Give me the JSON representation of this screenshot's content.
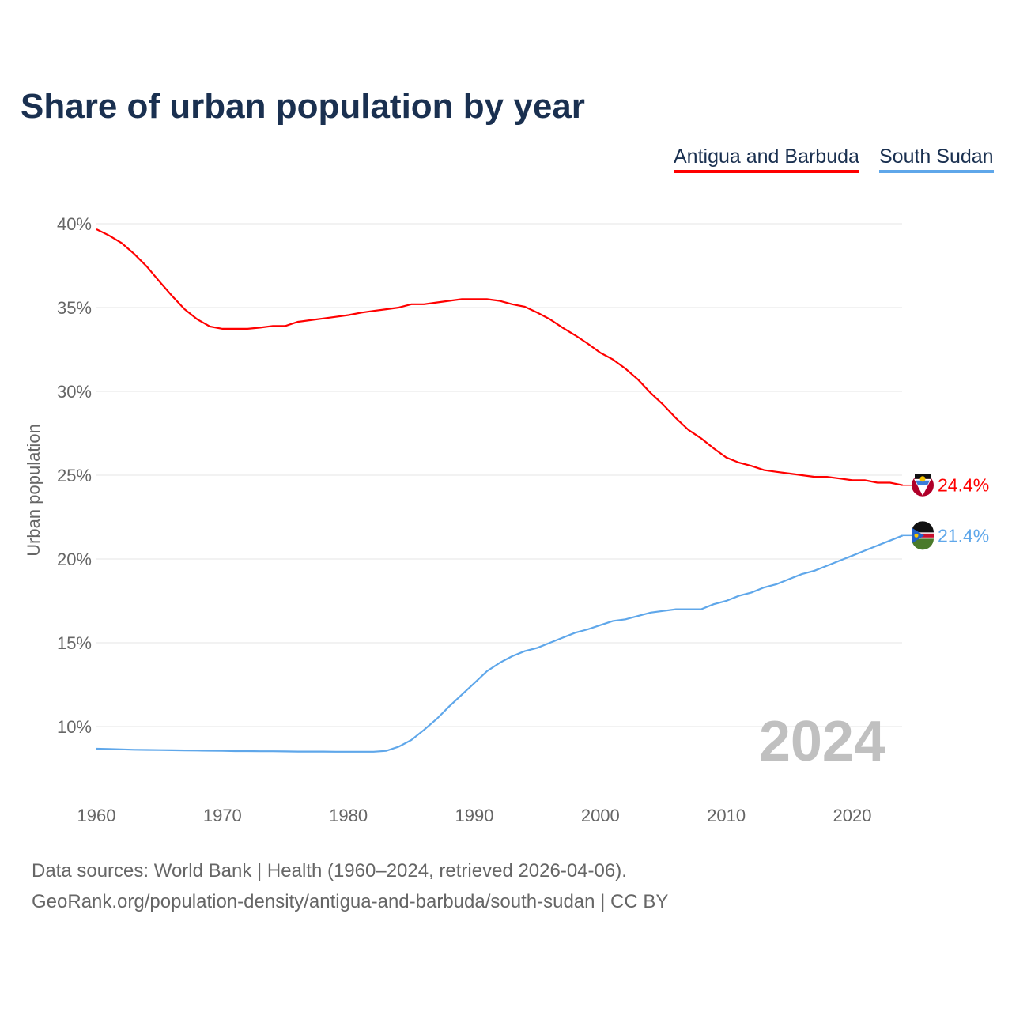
{
  "chart_data": {
    "type": "line",
    "title": "Share of urban population by year",
    "xlabel": "",
    "ylabel": "Urban population",
    "xlim": [
      1960,
      2024
    ],
    "ylim": [
      5,
      40
    ],
    "grid": true,
    "legend_position": "top-right",
    "x_ticks": [
      "1960",
      "1970",
      "1980",
      "1990",
      "2000",
      "2010",
      "2020"
    ],
    "y_ticks": [
      "10%",
      "15%",
      "20%",
      "25%",
      "30%",
      "35%",
      "40%"
    ],
    "year_watermark": "2024",
    "x": [
      1960,
      1961,
      1962,
      1963,
      1964,
      1965,
      1966,
      1967,
      1968,
      1969,
      1970,
      1971,
      1972,
      1973,
      1974,
      1975,
      1976,
      1977,
      1978,
      1979,
      1980,
      1981,
      1982,
      1983,
      1984,
      1985,
      1986,
      1987,
      1988,
      1989,
      1990,
      1991,
      1992,
      1993,
      1994,
      1995,
      1996,
      1997,
      1998,
      1999,
      2000,
      2001,
      2002,
      2003,
      2004,
      2005,
      2006,
      2007,
      2008,
      2009,
      2010,
      2011,
      2012,
      2013,
      2014,
      2015,
      2016,
      2017,
      2018,
      2019,
      2020,
      2021,
      2022,
      2023,
      2024
    ],
    "series": [
      {
        "name": "Antigua and Barbuda",
        "color": "#ff0000",
        "end_label": "24.4%",
        "values": [
          39.67,
          39.3,
          38.85,
          38.2,
          37.45,
          36.55,
          35.7,
          34.9,
          34.3,
          33.87,
          33.73,
          33.73,
          33.73,
          33.8,
          33.9,
          33.9,
          34.15,
          34.25,
          34.35,
          34.45,
          34.55,
          34.7,
          34.8,
          34.9,
          35.0,
          35.2,
          35.2,
          35.3,
          35.4,
          35.5,
          35.5,
          35.5,
          35.4,
          35.2,
          35.05,
          34.7,
          34.3,
          33.8,
          33.35,
          32.85,
          32.3,
          31.9,
          31.35,
          30.7,
          29.9,
          29.2,
          28.4,
          27.7,
          27.2,
          26.6,
          26.05,
          25.75,
          25.55,
          25.3,
          25.2,
          25.1,
          25.0,
          24.9,
          24.9,
          24.8,
          24.7,
          24.7,
          24.55,
          24.55,
          24.4
        ]
      },
      {
        "name": "South Sudan",
        "color": "#5fa7ea",
        "end_label": "21.4%",
        "values": [
          8.68,
          8.66,
          8.64,
          8.62,
          8.61,
          8.6,
          8.59,
          8.58,
          8.57,
          8.56,
          8.55,
          8.54,
          8.54,
          8.53,
          8.53,
          8.52,
          8.51,
          8.51,
          8.51,
          8.5,
          8.5,
          8.5,
          8.5,
          8.55,
          8.8,
          9.2,
          9.8,
          10.45,
          11.2,
          11.9,
          12.6,
          13.3,
          13.8,
          14.2,
          14.5,
          14.7,
          15.0,
          15.3,
          15.6,
          15.8,
          16.05,
          16.3,
          16.4,
          16.6,
          16.8,
          16.9,
          17.0,
          17.0,
          17.0,
          17.3,
          17.5,
          17.8,
          18.0,
          18.3,
          18.5,
          18.8,
          19.1,
          19.3,
          19.6,
          19.9,
          20.2,
          20.5,
          20.8,
          21.1,
          21.4
        ]
      }
    ]
  },
  "footer": {
    "line1": "Data sources: World Bank | Health (1960–2024, retrieved 2026-04-06).",
    "line2": "GeoRank.org/population-density/antigua-and-barbuda/south-sudan | CC BY"
  }
}
